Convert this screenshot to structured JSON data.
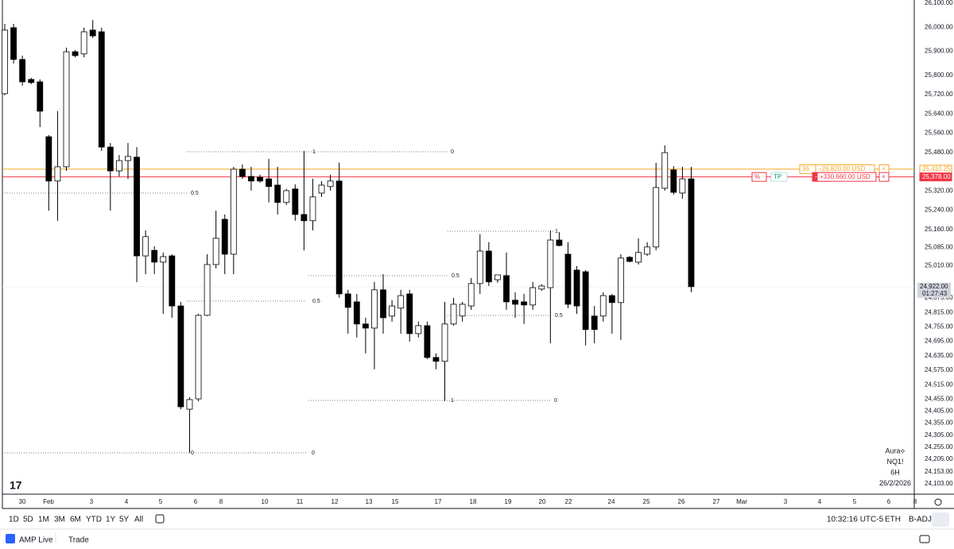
{
  "chart_data": {
    "type": "candlestick",
    "open": [
      25724,
      25998,
      25866,
      25783,
      25773,
      25545,
      25361,
      25420,
      25898,
      25889,
      25988,
      25981,
      25502,
      25403,
      25446,
      25460,
      25050,
      25073,
      25024,
      25050,
      24842,
      24413,
      24456,
      24803,
      25014,
      25202,
      25057,
      25410,
      25380,
      25377,
      25370,
      25344,
      25272,
      25328,
      25222,
      25196,
      25311,
      25338,
      25361,
      24892,
      24859,
      24767,
      24750,
      24909,
      24800,
      24833,
      24892,
      24727,
      24760,
      24628,
      24612,
      24767,
      24800,
      24842,
      24935,
      25070,
      24951,
      24968,
      24866,
      24859,
      24846,
      24912,
      24918,
      25116,
      25057,
      24991,
      24984,
      24800,
      24800,
      24885,
      24856,
      25044,
      25024,
      25057,
      25087,
      25331,
      25407,
      25311,
      25370
    ],
    "high": [
      26014,
      26014,
      25882,
      25790,
      25783,
      25552,
      25651,
      25915,
      25905,
      25998,
      26030,
      25998,
      25519,
      25469,
      25519,
      25502,
      25156,
      25090,
      25064,
      25057,
      24859,
      24463,
      24809,
      25057,
      25238,
      25222,
      25420,
      25430,
      25420,
      25387,
      25453,
      25420,
      25328,
      25347,
      25486,
      25370,
      25361,
      25387,
      25437,
      24909,
      24892,
      24793,
      24942,
      24974,
      24866,
      24909,
      24909,
      24777,
      24777,
      24645,
      24859,
      24876,
      24859,
      24958,
      25140,
      25107,
      24971,
      25064,
      24899,
      24892,
      24942,
      24932,
      25156,
      25149,
      25107,
      25008,
      24991,
      24842,
      24899,
      24892,
      25057,
      25050,
      25123,
      25107,
      25437,
      25509,
      25423,
      25420,
      25420
    ],
    "low": [
      25717,
      25849,
      25757,
      25763,
      25585,
      25238,
      25196,
      25403,
      25875,
      25875,
      25955,
      25486,
      25238,
      25380,
      25370,
      24941,
      24974,
      24974,
      24809,
      24793,
      24413,
      24232,
      24446,
      24800,
      24998,
      24974,
      24974,
      25370,
      25321,
      25354,
      25272,
      25222,
      25262,
      25196,
      25073,
      25156,
      25295,
      25321,
      24876,
      24727,
      24711,
      24645,
      24579,
      24727,
      24777,
      24727,
      24694,
      24711,
      24621,
      24579,
      24446,
      24760,
      24777,
      24826,
      24892,
      24925,
      24938,
      24826,
      24793,
      24767,
      24826,
      24905,
      24687,
      25090,
      24833,
      24809,
      24678,
      24687,
      24777,
      24727,
      24701,
      25024,
      25014,
      25050,
      25073,
      25321,
      25304,
      25288,
      24899
    ],
    "close": [
      25988,
      25866,
      25773,
      25770,
      25651,
      25361,
      25420,
      25898,
      25882,
      25981,
      25964,
      25502,
      25403,
      25446,
      25463,
      25050,
      25130,
      25024,
      25047,
      24842,
      24423,
      24453,
      24803,
      25014,
      25123,
      25057,
      25410,
      25380,
      25361,
      25361,
      25338,
      25272,
      25321,
      25222,
      25196,
      25295,
      25344,
      25361,
      24892,
      24836,
      24767,
      24750,
      24909,
      24793,
      24842,
      24885,
      24727,
      24760,
      24628,
      24612,
      24767,
      24849,
      24849,
      24935,
      25070,
      24942,
      24971,
      24859,
      24849,
      24846,
      24918,
      24925,
      25116,
      25093,
      24849,
      24842,
      24744,
      24744,
      24885,
      24856,
      25041,
      25027,
      25064,
      25087,
      25334,
      25479,
      25314,
      25370,
      24922
    ],
    "up_color": "#ffffff",
    "down_color": "#000000",
    "ylim": [
      24060,
      26113
    ],
    "yticks": [
      {
        "value": 26100,
        "label": "26,100.00"
      },
      {
        "value": 26000,
        "label": "26,000.00"
      },
      {
        "value": 25900,
        "label": "25,900.00"
      },
      {
        "value": 25800,
        "label": "25,800.00"
      },
      {
        "value": 25720,
        "label": "25,720.00"
      },
      {
        "value": 25640,
        "label": "25,640.00"
      },
      {
        "value": 25560,
        "label": "25,560.00"
      },
      {
        "value": 25480,
        "label": "25,480.00"
      },
      {
        "value": 25320,
        "label": "25,320.00"
      },
      {
        "value": 25240,
        "label": "25,240.00"
      },
      {
        "value": 25160,
        "label": "25,160.00"
      },
      {
        "value": 25085,
        "label": "25,085.00"
      },
      {
        "value": 25010,
        "label": "25,010.00"
      },
      {
        "value": 24875,
        "label": "24,875.00"
      },
      {
        "value": 24815,
        "label": "24,815.00"
      },
      {
        "value": 24755,
        "label": "24,755.00"
      },
      {
        "value": 24695,
        "label": "24,695.00"
      },
      {
        "value": 24635,
        "label": "24,635.00"
      },
      {
        "value": 24575,
        "label": "24,575.00"
      },
      {
        "value": 24515,
        "label": "24,515.00"
      },
      {
        "value": 24455,
        "label": "24,455.00"
      },
      {
        "value": 24405,
        "label": "24,405.00"
      },
      {
        "value": 24355,
        "label": "24,355.00"
      },
      {
        "value": 24305,
        "label": "24,305.00"
      },
      {
        "value": 24255,
        "label": "24,255.00"
      },
      {
        "value": 24205,
        "label": "24,205.00"
      },
      {
        "value": 24153,
        "label": "24,153.00"
      },
      {
        "value": 24103,
        "label": "24,103.00"
      }
    ],
    "x_labels": [
      "30",
      "Feb",
      "3",
      "4",
      "5",
      "6",
      "8",
      "10",
      "11",
      "12",
      "13",
      "15",
      "17",
      "18",
      "19",
      "20",
      "22",
      "24",
      "25",
      "26",
      "27",
      "Mar",
      "3",
      "4",
      "5",
      "6",
      "8"
    ],
    "price_lines": [
      {
        "value": 25410.25,
        "label": "25,410.25",
        "color": "#f5a623",
        "tags": [
          "36",
          "−26,820.00 USD",
          "×"
        ]
      },
      {
        "value": 25378,
        "label": "25,378.00",
        "color": "#f23645",
        "tags": [
          "%",
          "TP",
          "−36",
          "+330,660.00 USD",
          "×"
        ]
      }
    ],
    "last_price": {
      "value": 24922,
      "label": "24,922.00",
      "countdown": "01:27:43"
    },
    "annotations": [
      "1",
      "0",
      "0.5",
      "0.5",
      "0",
      "0",
      "1",
      "0.5",
      "0.5",
      "1",
      "0"
    ],
    "legend": [
      "Aura⟡",
      "NQ1!",
      "6H",
      "26/2/2026"
    ]
  },
  "toolbar": {
    "ranges": [
      "1D",
      "5D",
      "1M",
      "3M",
      "6M",
      "YTD",
      "1Y",
      "5Y",
      "All"
    ],
    "time": "10:32:16 UTC-5",
    "session": "ETH",
    "adjust": "B-ADJ"
  },
  "footer": {
    "broker": "AMP Live",
    "trade": "Trade"
  }
}
